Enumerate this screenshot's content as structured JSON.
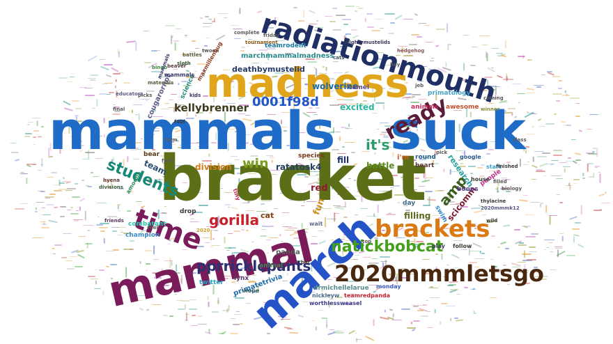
{
  "words": [
    {
      "text": "mammals",
      "color": "#1f6cc8"
    },
    {
      "text": "suck",
      "color": "#1f6cc8"
    },
    {
      "text": "bracket",
      "color": "#5c6e16"
    },
    {
      "text": "madness",
      "color": "#e1a51b"
    },
    {
      "text": "radiationmouth",
      "color": "#1f2e63"
    },
    {
      "text": "mammal",
      "color": "#7a1c5a"
    },
    {
      "text": "march",
      "color": "#2453c7"
    },
    {
      "text": "time",
      "color": "#7a1c5a"
    },
    {
      "text": "brackets",
      "color": "#d97a15"
    },
    {
      "text": "2020mmmletsgo",
      "color": "#4a2810"
    },
    {
      "text": "ready",
      "color": "#5a1c3a"
    },
    {
      "text": "natickbobcat",
      "color": "#44a01c"
    },
    {
      "text": "students",
      "color": "#168878"
    },
    {
      "text": "0001f98d",
      "color": "#2256c8"
    },
    {
      "text": "pprricklepants",
      "color": "#2b3070"
    },
    {
      "text": "gorilla",
      "color": "#c8202a"
    },
    {
      "text": "it's",
      "color": "#2a9c6a"
    },
    {
      "text": "win",
      "color": "#7b9e1c"
    },
    {
      "text": "amp",
      "color": "#3a5c1c"
    },
    {
      "text": "kellybrenner",
      "color": "#3c3c1c"
    },
    {
      "text": "deathbymustelid",
      "color": "#243a6c"
    },
    {
      "text": "wolverine",
      "color": "#1c6aa8"
    },
    {
      "text": "excited",
      "color": "#2ab8a0"
    },
    {
      "text": "team",
      "color": "#2a4c70"
    },
    {
      "text": "scicomm",
      "color": "#7a1a30"
    },
    {
      "text": "fill",
      "color": "#1c2c6a"
    },
    {
      "text": "division",
      "color": "#d47c1c"
    },
    {
      "text": "ratatosk4",
      "color": "#24405c"
    },
    {
      "text": "battle",
      "color": "#5c8c20"
    },
    {
      "text": "fun",
      "color": "#d48c1c"
    },
    {
      "text": "filling",
      "color": "#5a6a1c"
    },
    {
      "text": "research",
      "color": "#2aa0a0"
    },
    {
      "text": "red",
      "color": "#8a1c2a"
    },
    {
      "text": "cat",
      "color": "#8a4010"
    },
    {
      "text": "primatology",
      "color": "#4aa4c8"
    },
    {
      "text": "teamrodent",
      "color": "#1c7aa8"
    },
    {
      "text": "marchmammalmadness",
      "color": "#2a8c8c"
    },
    {
      "text": "primatetrivia",
      "color": "#1c6ca8"
    },
    {
      "text": "drmichellelarue",
      "color": "#5a8c8c"
    },
    {
      "text": "nickleyw",
      "color": "#4a6a8c"
    },
    {
      "text": "teamredpanda",
      "color": "#c0202a"
    },
    {
      "text": "worthlessweasel",
      "color": "#3a3a8a"
    },
    {
      "text": "twitter",
      "color": "#2aa0c8"
    },
    {
      "text": "panda",
      "color": "#5a5a5a"
    },
    {
      "text": "animal",
      "color": "#5a7a4a"
    },
    {
      "text": "lynx",
      "color": "#5a3a6a"
    },
    {
      "text": "champion",
      "color": "#3a8ac8"
    },
    {
      "text": "combatant",
      "color": "#2ac8b0"
    },
    {
      "text": "cougarornot",
      "color": "#5a5a8a"
    },
    {
      "text": "science",
      "color": "#2a8a7a"
    },
    {
      "text": "species",
      "color": "#7a3a1c"
    },
    {
      "text": "heart",
      "color": "#5a3a3a"
    },
    {
      "text": "animals",
      "color": "#c82a5a"
    },
    {
      "text": "awesome",
      "color": "#c8502a"
    },
    {
      "text": "people",
      "color": "#c82a8a"
    },
    {
      "text": "boops",
      "color": "#5a3a8a"
    },
    {
      "text": "round",
      "color": "#1c5a8a"
    },
    {
      "text": "google",
      "color": "#2a5a8a"
    },
    {
      "text": "house",
      "color": "#3a3a3a"
    },
    {
      "text": "day",
      "color": "#3a6a8a"
    },
    {
      "text": "swim",
      "color": "#2a8ac8"
    },
    {
      "text": "drop",
      "color": "#3a3a3a"
    },
    {
      "text": "bear",
      "color": "#5a3a1c"
    },
    {
      "text": "camel",
      "color": "#5a4a8a"
    },
    {
      "text": "i'm",
      "color": "#c85a1c"
    },
    {
      "text": "hope",
      "color": "#2a5a5a"
    },
    {
      "text": "wait",
      "color": "#5a6a8a"
    },
    {
      "text": "monday",
      "color": "#3a5ac8"
    },
    {
      "text": "tournament",
      "color": "#8a5a1c"
    },
    {
      "text": "mammals",
      "color": "#3a3a6a"
    },
    {
      "text": "materials",
      "color": "#5a5a3a"
    },
    {
      "text": "friends",
      "color": "#5a3a5a"
    },
    {
      "text": "feel",
      "color": "#5a5a5a"
    },
    {
      "text": "divisions",
      "color": "#3a5a3a"
    },
    {
      "text": "hyena",
      "color": "#5a3a3a"
    },
    {
      "text": "amoeba",
      "color": "#2a8a5a"
    },
    {
      "text": "start",
      "color": "#3aa0c8"
    },
    {
      "text": "2020mmmk12",
      "color": "#5a5a8a"
    },
    {
      "text": "thylacine",
      "color": "#3a3a3a"
    },
    {
      "text": "filled",
      "color": "#5a5a5a"
    },
    {
      "text": "biology",
      "color": "#5a5a5a"
    },
    {
      "text": "play",
      "color": "#3a3a5a"
    },
    {
      "text": "follow",
      "color": "#3a3a3a"
    },
    {
      "text": "winner",
      "color": "#8a8a3a"
    },
    {
      "text": "hedgehog",
      "color": "#8a5a5a"
    },
    {
      "text": "mightymustelids",
      "color": "#3a3a5a"
    },
    {
      "text": "cats",
      "color": "#3a5a5a"
    },
    {
      "text": "kids",
      "color": "#3a3a5a"
    },
    {
      "text": "picks",
      "color": "#5a5a5a"
    },
    {
      "text": "final",
      "color": "#5a5a5a"
    },
    {
      "text": "class",
      "color": "#5a5a5a"
    },
    {
      "text": "battles",
      "color": "#5a5a3a"
    },
    {
      "text": "beaver",
      "color": "#5a3a3a"
    },
    {
      "text": "sloth",
      "color": "#3a5a3a"
    },
    {
      "text": "twoon",
      "color": "#5a5a5a"
    },
    {
      "text": "top",
      "color": "#5a5a5a"
    },
    {
      "text": "bat",
      "color": "#3a3a3a"
    },
    {
      "text": "friday",
      "color": "#5a5a5a"
    },
    {
      "text": "complete",
      "color": "#5a5a5a"
    },
    {
      "text": "2020",
      "color": "#c8a02a"
    },
    {
      "text": "f40f",
      "color": "#3a3a3a"
    },
    {
      "text": "form",
      "color": "#5a5a5a"
    },
    {
      "text": "fw0f",
      "color": "#5a5a5a"
    },
    {
      "text": "tiny",
      "color": "#c82a5a"
    },
    {
      "text": "bingo",
      "color": "#3a8a3a"
    },
    {
      "text": "mammals",
      "color": "#3a3a6a"
    },
    {
      "text": "maxmillenbug",
      "color": "#8a3a1c"
    },
    {
      "text": "educators",
      "color": "#5a5a8a"
    },
    {
      "text": "pick",
      "color": "#5a5a5a"
    },
    {
      "text": "hey",
      "color": "#5a5a5a"
    },
    {
      "text": "jeb",
      "color": "#5a5a5a"
    },
    {
      "text": "finished",
      "color": "#3a3a3a"
    },
    {
      "text": "wild",
      "color": "#3a3a3a"
    },
    {
      "text": "coming",
      "color": "#5a5a5a"
    }
  ],
  "speck_colors": [
    "#e8a040",
    "#60b060",
    "#c060c0",
    "#6080d0",
    "#d06060",
    "#40a0a0",
    "#a0a040",
    "#888888"
  ]
}
